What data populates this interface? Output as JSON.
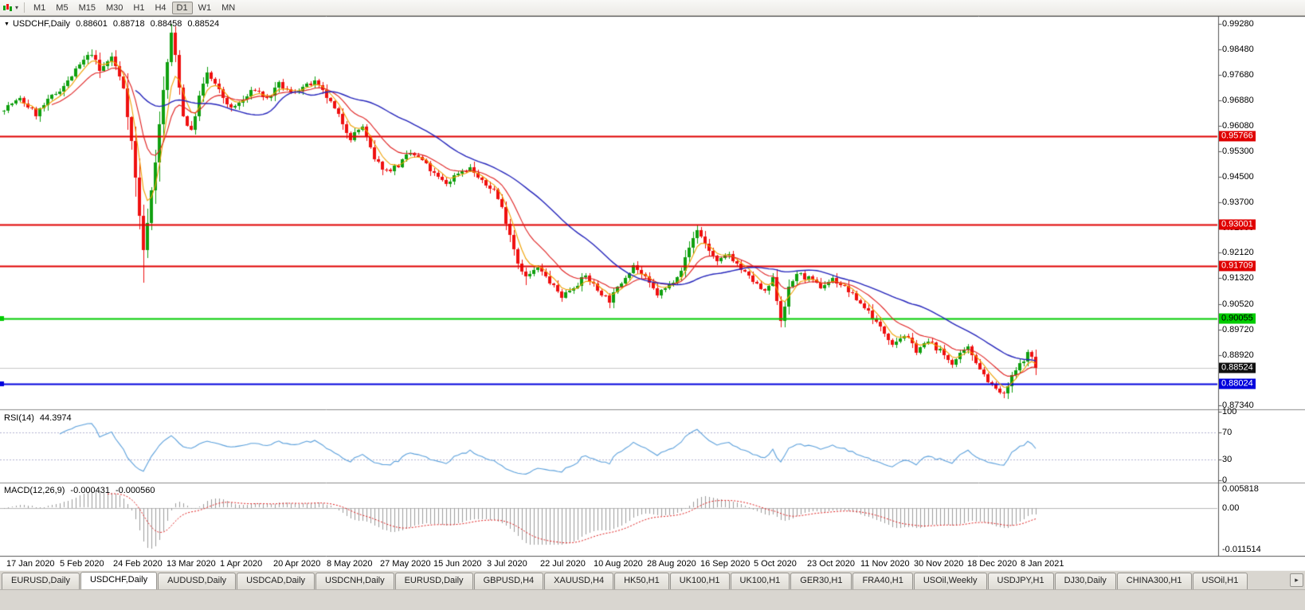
{
  "toolbar": {
    "timeframes": [
      "M1",
      "M5",
      "M15",
      "M30",
      "H1",
      "H4",
      "D1",
      "W1",
      "MN"
    ],
    "active": "D1",
    "dropdown_icon": "▾"
  },
  "header": {
    "dropdown_icon": "▼",
    "symbol": "USDCHF,Daily",
    "open": "0.88601",
    "high": "0.88718",
    "low": "0.88458",
    "close": "0.88524"
  },
  "tabs": {
    "scroll_icon": "▸",
    "items": [
      {
        "label": "EURUSD,Daily",
        "active": false
      },
      {
        "label": "USDCHF,Daily",
        "active": true
      },
      {
        "label": "AUDUSD,Daily",
        "active": false
      },
      {
        "label": "USDCAD,Daily",
        "active": false
      },
      {
        "label": "USDCNH,Daily",
        "active": false
      },
      {
        "label": "EURUSD,Daily",
        "active": false
      },
      {
        "label": "GBPUSD,H4",
        "active": false
      },
      {
        "label": "XAUUSD,H4",
        "active": false
      },
      {
        "label": "HK50,H1",
        "active": false
      },
      {
        "label": "UK100,H1",
        "active": false
      },
      {
        "label": "UK100,H1",
        "active": false
      },
      {
        "label": "GER30,H1",
        "active": false
      },
      {
        "label": "FRA40,H1",
        "active": false
      },
      {
        "label": "USOil,Weekly",
        "active": false
      },
      {
        "label": "USDJPY,H1",
        "active": false
      },
      {
        "label": "DJ30,Daily",
        "active": false
      },
      {
        "label": "CHINA300,H1",
        "active": false
      },
      {
        "label": "USOil,H1",
        "active": false
      }
    ]
  },
  "chart_data": {
    "type": "candlestick",
    "symbol": "USDCHF",
    "timeframe": "Daily",
    "num_candles": 260,
    "price_axis_labels": [
      "0.99280",
      "0.98480",
      "0.97680",
      "0.96880",
      "0.96080",
      "0.95300",
      "0.94500",
      "0.93700",
      "0.92900",
      "0.92120",
      "0.91320",
      "0.90520",
      "0.89720",
      "0.88920",
      "0.87340"
    ],
    "price_range": [
      0.8727,
      0.9948
    ],
    "current_price": "0.88524",
    "hlines": [
      {
        "price": "0.95766",
        "color": "#e00000",
        "text": "#ffffff",
        "edge_marker": false
      },
      {
        "price": "0.93001",
        "color": "#e00000",
        "text": "#ffffff",
        "edge_marker": false
      },
      {
        "price": "0.91709",
        "color": "#e00000",
        "text": "#ffffff",
        "edge_marker": false
      },
      {
        "price": "0.90055",
        "color": "#00cc00",
        "text": "#000000",
        "edge_marker": true
      },
      {
        "price": "0.88024",
        "color": "#0000dd",
        "text": "#ffffff",
        "edge_marker": true
      }
    ],
    "date_labels": [
      "17 Jan 2020",
      "5 Feb 2020",
      "24 Feb 2020",
      "13 Mar 2020",
      "1 Apr 2020",
      "20 Apr 2020",
      "8 May 2020",
      "27 May 2020",
      "15 Jun 2020",
      "3 Jul 2020",
      "22 Jul 2020",
      "10 Aug 2020",
      "28 Aug 2020",
      "16 Sep 2020",
      "5 Oct 2020",
      "23 Oct 2020",
      "11 Nov 2020",
      "30 Nov 2020",
      "18 Dec 2020",
      "8 Jan 2021"
    ],
    "price_path": [
      [
        0,
        0.9665
      ],
      [
        4,
        0.9692
      ],
      [
        8,
        0.9645
      ],
      [
        12,
        0.97
      ],
      [
        16,
        0.9748
      ],
      [
        19,
        0.98
      ],
      [
        22,
        0.9838
      ],
      [
        24,
        0.978
      ],
      [
        27,
        0.9826
      ],
      [
        30,
        0.973
      ],
      [
        32,
        0.956
      ],
      [
        34,
        0.933
      ],
      [
        35,
        0.9215
      ],
      [
        36,
        0.931
      ],
      [
        38,
        0.95
      ],
      [
        40,
        0.972
      ],
      [
        42,
        0.9895
      ],
      [
        43,
        0.983
      ],
      [
        45,
        0.964
      ],
      [
        47,
        0.959
      ],
      [
        49,
        0.97
      ],
      [
        51,
        0.9775
      ],
      [
        54,
        0.9718
      ],
      [
        57,
        0.966
      ],
      [
        60,
        0.969
      ],
      [
        63,
        0.9725
      ],
      [
        66,
        0.9692
      ],
      [
        69,
        0.9738
      ],
      [
        72,
        0.9712
      ],
      [
        75,
        0.973
      ],
      [
        78,
        0.9744
      ],
      [
        81,
        0.97
      ],
      [
        84,
        0.964
      ],
      [
        87,
        0.9572
      ],
      [
        90,
        0.9608
      ],
      [
        93,
        0.9502
      ],
      [
        96,
        0.9468
      ],
      [
        99,
        0.9486
      ],
      [
        102,
        0.9524
      ],
      [
        105,
        0.95
      ],
      [
        108,
        0.9456
      ],
      [
        111,
        0.9428
      ],
      [
        114,
        0.9464
      ],
      [
        117,
        0.9478
      ],
      [
        120,
        0.9432
      ],
      [
        123,
        0.9408
      ],
      [
        125,
        0.9352
      ],
      [
        127,
        0.927
      ],
      [
        129,
        0.9182
      ],
      [
        131,
        0.9136
      ],
      [
        134,
        0.9164
      ],
      [
        137,
        0.912
      ],
      [
        140,
        0.9076
      ],
      [
        143,
        0.9106
      ],
      [
        146,
        0.914
      ],
      [
        149,
        0.9096
      ],
      [
        152,
        0.9062
      ],
      [
        155,
        0.912
      ],
      [
        158,
        0.9174
      ],
      [
        161,
        0.913
      ],
      [
        164,
        0.9082
      ],
      [
        167,
        0.911
      ],
      [
        170,
        0.916
      ],
      [
        172,
        0.9228
      ],
      [
        174,
        0.9286
      ],
      [
        176,
        0.924
      ],
      [
        179,
        0.918
      ],
      [
        182,
        0.9208
      ],
      [
        185,
        0.916
      ],
      [
        188,
        0.9124
      ],
      [
        191,
        0.9086
      ],
      [
        193,
        0.9128
      ],
      [
        195,
        0.9002
      ],
      [
        197,
        0.9098
      ],
      [
        199,
        0.9148
      ],
      [
        202,
        0.913
      ],
      [
        205,
        0.9106
      ],
      [
        208,
        0.913
      ],
      [
        211,
        0.9104
      ],
      [
        214,
        0.9066
      ],
      [
        217,
        0.903
      ],
      [
        220,
        0.8976
      ],
      [
        223,
        0.893
      ],
      [
        226,
        0.8954
      ],
      [
        229,
        0.8906
      ],
      [
        232,
        0.8934
      ],
      [
        235,
        0.8904
      ],
      [
        238,
        0.8866
      ],
      [
        240,
        0.889
      ],
      [
        242,
        0.8914
      ],
      [
        244,
        0.8872
      ],
      [
        246,
        0.8832
      ],
      [
        248,
        0.8796
      ],
      [
        251,
        0.8764
      ],
      [
        253,
        0.8824
      ],
      [
        255,
        0.8862
      ],
      [
        257,
        0.8896
      ],
      [
        258,
        0.8886
      ],
      [
        259,
        0.8852
      ]
    ],
    "wick_overrides": {
      "22": {
        "high": 0.9848
      },
      "35": {
        "low": 0.9118
      },
      "42": {
        "high": 0.9928
      },
      "131": {
        "low": 0.911
      },
      "174": {
        "high": 0.9301
      },
      "195": {
        "low": 0.8978
      },
      "251": {
        "low": 0.8757
      }
    },
    "ma_lines": [
      {
        "name": "fast",
        "period": 5,
        "type": "ema",
        "color": "#f0a000"
      },
      {
        "name": "medium",
        "period": 13,
        "type": "ema",
        "color": "#e02020"
      },
      {
        "name": "slow",
        "period": 34,
        "type": "sma",
        "color": "#2424bb"
      }
    ],
    "rsi": {
      "label": "RSI(14)",
      "value": "44.3974",
      "period": 14,
      "axis_labels": [
        "100",
        "70",
        "30",
        "0"
      ],
      "levels": [
        70,
        30
      ]
    },
    "macd": {
      "label": "MACD(12,26,9)",
      "macd_value": "-0.000431",
      "signal_value": "-0.000560",
      "fast": 12,
      "slow": 26,
      "signal": 9,
      "axis_labels": [
        "0.005818",
        "0.00",
        "-0.011514"
      ],
      "range": [
        0.005818,
        -0.011514
      ]
    },
    "colors": {
      "up": "#10a010",
      "down": "#ef1010",
      "rsi": "#5ba0dc",
      "rsi_level": "#b4b4d2",
      "macd_hist": "#9b9b9b",
      "macd_signal": "#e02020",
      "current_line": "#c8c8c8",
      "frame": "#555555"
    }
  }
}
